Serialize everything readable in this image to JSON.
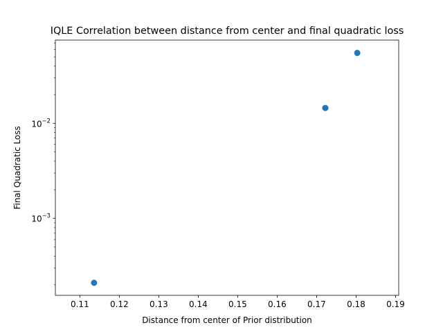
{
  "chart_data": {
    "type": "scatter",
    "title": "IQLE Correlation between distance from center and final quadratic loss",
    "xlabel": "Distance from center of Prior distribution",
    "ylabel": "Final Quadratic Loss",
    "xlim": [
      0.1038,
      0.1908
    ],
    "ylim": [
      0.000155,
      0.075
    ],
    "yscale": "log",
    "grid": false,
    "x_ticks": [
      "0.11",
      "0.12",
      "0.13",
      "0.14",
      "0.15",
      "0.16",
      "0.17",
      "0.18",
      "0.19"
    ],
    "x_tick_values": [
      0.11,
      0.12,
      0.13,
      0.14,
      0.15,
      0.16,
      0.17,
      0.18,
      0.19
    ],
    "y_ticks": [
      {
        "base": "10",
        "exp": "−3",
        "value": 0.001
      },
      {
        "base": "10",
        "exp": "−2",
        "value": 0.01
      }
    ],
    "marker_color": "#1f77b4",
    "points": [
      {
        "x": 0.1136,
        "y": 0.00021
      },
      {
        "x": 0.1722,
        "y": 0.0145
      },
      {
        "x": 0.1803,
        "y": 0.055
      }
    ]
  }
}
